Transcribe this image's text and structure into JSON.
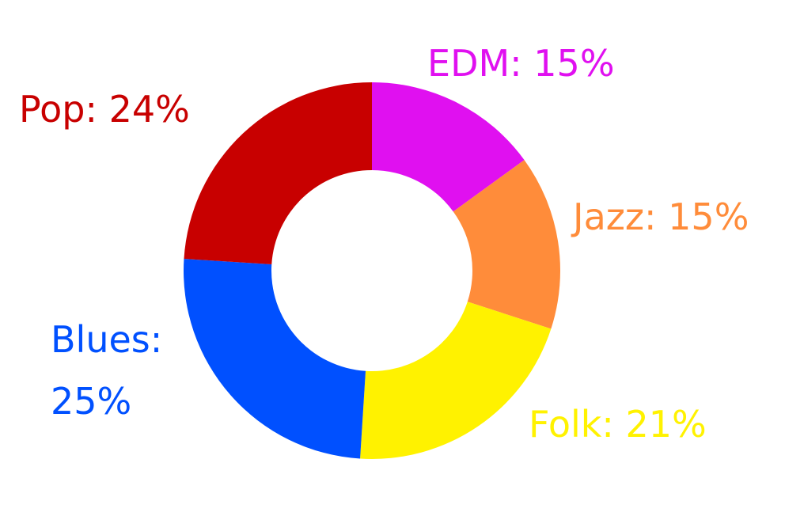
{
  "chart_data": {
    "type": "pie",
    "donut": true,
    "categories": [
      "EDM",
      "Jazz",
      "Folk",
      "Blues",
      "Pop"
    ],
    "values": [
      15,
      15,
      21,
      25,
      24
    ],
    "colors": [
      "#e010f0",
      "#ff8c3a",
      "#fff200",
      "#0050ff",
      "#c80000"
    ],
    "data_labels": [
      "EDM:  15%",
      "Jazz: 15%",
      "Folk: 21%",
      "Blues:\n25%",
      "Pop: 24%"
    ],
    "title": "",
    "legend": "none"
  }
}
